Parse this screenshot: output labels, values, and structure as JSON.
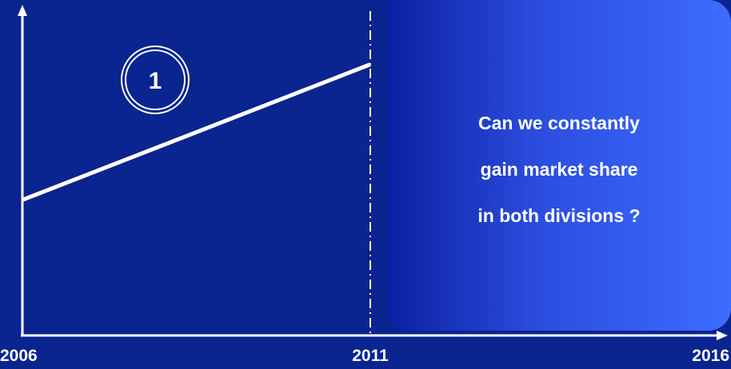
{
  "chart_data": {
    "type": "line",
    "title": "",
    "xlabel": "",
    "ylabel": "",
    "x_ticks": [
      "2006",
      "2011",
      "2016"
    ],
    "xlim": [
      2006,
      2016
    ],
    "ylim": [
      0,
      100
    ],
    "series": [
      {
        "x": [
          2006,
          2011
        ],
        "y": [
          42,
          84
        ]
      }
    ],
    "divider_x": 2011,
    "grid": false
  },
  "badge": {
    "label": "1"
  },
  "callout": {
    "lines": [
      "Can we constantly",
      "gain market share",
      "in both divisions ?"
    ]
  },
  "colors": {
    "background": "#0a2490",
    "foreground": "#ffffff",
    "callout_start": "#0a1fa0",
    "callout_end": "#3d6cff"
  }
}
